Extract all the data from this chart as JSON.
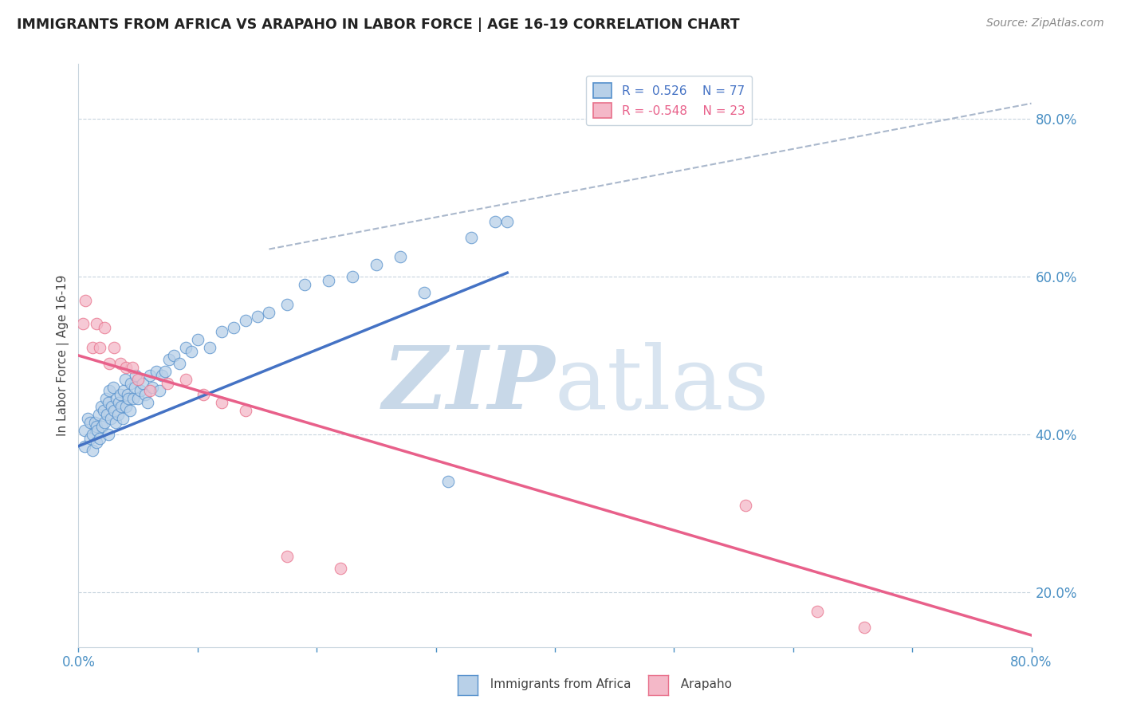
{
  "title": "IMMIGRANTS FROM AFRICA VS ARAPAHO IN LABOR FORCE | AGE 16-19 CORRELATION CHART",
  "source_text": "Source: ZipAtlas.com",
  "ylabel": "In Labor Force | Age 16-19",
  "xlim": [
    0.0,
    0.8
  ],
  "ylim": [
    0.13,
    0.87
  ],
  "ytick_right_labels": [
    "20.0%",
    "40.0%",
    "60.0%",
    "80.0%"
  ],
  "ytick_right_values": [
    0.2,
    0.4,
    0.6,
    0.8
  ],
  "legend_r1": "R =  0.526",
  "legend_n1": "N = 77",
  "legend_r2": "R = -0.548",
  "legend_n2": "N = 23",
  "color_blue_fill": "#b8d0e8",
  "color_pink_fill": "#f4b8c8",
  "color_blue_edge": "#5590cc",
  "color_pink_edge": "#e8708a",
  "color_blue_line": "#4472c4",
  "color_pink_line": "#e8608a",
  "color_dashed": "#aab8cc",
  "watermark_color": "#c8d8e8",
  "blue_scatter_x": [
    0.005,
    0.005,
    0.008,
    0.01,
    0.01,
    0.012,
    0.012,
    0.014,
    0.015,
    0.015,
    0.016,
    0.017,
    0.018,
    0.019,
    0.02,
    0.021,
    0.022,
    0.023,
    0.024,
    0.025,
    0.025,
    0.026,
    0.027,
    0.028,
    0.029,
    0.03,
    0.031,
    0.032,
    0.033,
    0.034,
    0.035,
    0.036,
    0.037,
    0.038,
    0.039,
    0.04,
    0.041,
    0.042,
    0.043,
    0.044,
    0.046,
    0.047,
    0.048,
    0.05,
    0.052,
    0.054,
    0.056,
    0.058,
    0.06,
    0.062,
    0.065,
    0.068,
    0.07,
    0.073,
    0.076,
    0.08,
    0.085,
    0.09,
    0.095,
    0.1,
    0.11,
    0.12,
    0.13,
    0.14,
    0.15,
    0.16,
    0.175,
    0.19,
    0.21,
    0.23,
    0.25,
    0.27,
    0.29,
    0.31,
    0.33,
    0.35,
    0.36
  ],
  "blue_scatter_y": [
    0.405,
    0.385,
    0.42,
    0.395,
    0.415,
    0.38,
    0.4,
    0.415,
    0.39,
    0.41,
    0.405,
    0.425,
    0.395,
    0.435,
    0.41,
    0.43,
    0.415,
    0.445,
    0.425,
    0.4,
    0.44,
    0.455,
    0.42,
    0.435,
    0.46,
    0.43,
    0.415,
    0.445,
    0.425,
    0.44,
    0.45,
    0.435,
    0.42,
    0.455,
    0.47,
    0.435,
    0.45,
    0.445,
    0.43,
    0.465,
    0.445,
    0.46,
    0.475,
    0.445,
    0.455,
    0.465,
    0.45,
    0.44,
    0.475,
    0.46,
    0.48,
    0.455,
    0.475,
    0.48,
    0.495,
    0.5,
    0.49,
    0.51,
    0.505,
    0.52,
    0.51,
    0.53,
    0.535,
    0.545,
    0.55,
    0.555,
    0.565,
    0.59,
    0.595,
    0.6,
    0.615,
    0.625,
    0.58,
    0.34,
    0.65,
    0.67,
    0.67
  ],
  "pink_scatter_x": [
    0.004,
    0.006,
    0.012,
    0.015,
    0.018,
    0.022,
    0.026,
    0.03,
    0.035,
    0.04,
    0.045,
    0.05,
    0.06,
    0.075,
    0.09,
    0.105,
    0.12,
    0.14,
    0.175,
    0.22,
    0.56,
    0.62,
    0.66
  ],
  "pink_scatter_y": [
    0.54,
    0.57,
    0.51,
    0.54,
    0.51,
    0.535,
    0.49,
    0.51,
    0.49,
    0.485,
    0.485,
    0.47,
    0.455,
    0.465,
    0.47,
    0.45,
    0.44,
    0.43,
    0.245,
    0.23,
    0.31,
    0.175,
    0.155
  ],
  "blue_trend_x": [
    0.0,
    0.36
  ],
  "blue_trend_y": [
    0.385,
    0.605
  ],
  "pink_trend_x": [
    0.0,
    0.8
  ],
  "pink_trend_y": [
    0.5,
    0.145
  ],
  "dashed_line_x": [
    0.16,
    0.8
  ],
  "dashed_line_y": [
    0.635,
    0.82
  ]
}
